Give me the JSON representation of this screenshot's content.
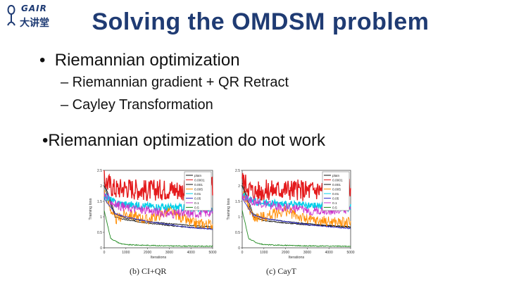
{
  "logo": {
    "en": "GAIR",
    "cn": "大讲堂"
  },
  "slide": {
    "title": "Solving the OMDSM problem",
    "bullet1": "Riemannian optimization",
    "sub_items": [
      "– Riemannian gradient + QR Retract",
      "– Cayley Transformation"
    ],
    "bullet2": "Riemannian optimization do not work"
  },
  "figures": [
    {
      "caption": "(b) CI+QR",
      "legend": [
        "plain",
        "0.0001",
        "0.001",
        "0.005",
        "0.01",
        "0.05",
        "0.1",
        "0.5"
      ]
    },
    {
      "caption": "(c) CayT",
      "legend": [
        "plain",
        "0.0001",
        "0.001",
        "0.005",
        "0.01",
        "0.05",
        "0.1",
        "0.5"
      ]
    }
  ],
  "chart_data": [
    {
      "type": "line",
      "ylabel": "Training loss",
      "xlabel": "Iterations",
      "xticks": [
        "0",
        "1000",
        "2000",
        "3000",
        "4000",
        "5000"
      ],
      "yticks": [
        "0",
        "0.5",
        "1",
        "1.5",
        "2",
        "2.5"
      ],
      "xlim": [
        0,
        5000
      ],
      "ylim": [
        0,
        2.5
      ],
      "series": [
        {
          "name": "plain",
          "color": "#111111",
          "points": [
            [
              0,
              2.1
            ],
            [
              500,
              1.1
            ],
            [
              1000,
              0.95
            ],
            [
              2000,
              0.85
            ],
            [
              3000,
              0.78
            ],
            [
              4000,
              0.72
            ],
            [
              5000,
              0.68
            ]
          ]
        },
        {
          "name": "0.0001",
          "color": "#e41a1c",
          "points": [
            [
              0,
              2.2
            ],
            [
              500,
              1.9
            ],
            [
              1000,
              1.95
            ],
            [
              2000,
              1.85
            ],
            [
              3000,
              1.9
            ],
            [
              4000,
              1.85
            ],
            [
              5000,
              1.95
            ]
          ]
        },
        {
          "name": "0.001",
          "color": "#111111",
          "points": [
            [
              0,
              2.0
            ],
            [
              500,
              1.0
            ],
            [
              1000,
              0.9
            ],
            [
              2000,
              0.8
            ],
            [
              3000,
              0.72
            ],
            [
              4000,
              0.66
            ],
            [
              5000,
              0.62
            ]
          ]
        },
        {
          "name": "0.005",
          "color": "#ff8c00",
          "points": [
            [
              0,
              1.8
            ],
            [
              500,
              0.9
            ],
            [
              1000,
              1.1
            ],
            [
              2000,
              0.9
            ],
            [
              3000,
              1.2
            ],
            [
              4000,
              0.8
            ],
            [
              5000,
              0.75
            ]
          ]
        },
        {
          "name": "0.01",
          "color": "#00cfe8",
          "points": [
            [
              0,
              1.7
            ],
            [
              500,
              1.45
            ],
            [
              1000,
              1.4
            ],
            [
              2000,
              1.35
            ],
            [
              3000,
              1.3
            ],
            [
              4000,
              1.3
            ],
            [
              5000,
              1.25
            ]
          ]
        },
        {
          "name": "0.05",
          "color": "#3333cc",
          "points": [
            [
              0,
              1.6
            ],
            [
              500,
              1.1
            ],
            [
              1000,
              1.0
            ],
            [
              2000,
              0.85
            ],
            [
              3000,
              0.75
            ],
            [
              4000,
              0.65
            ],
            [
              5000,
              0.6
            ]
          ]
        },
        {
          "name": "0.1",
          "color": "#cc33cc",
          "points": [
            [
              0,
              1.7
            ],
            [
              500,
              1.4
            ],
            [
              1000,
              1.3
            ],
            [
              2000,
              1.2
            ],
            [
              3000,
              1.1
            ],
            [
              4000,
              1.1
            ],
            [
              5000,
              1.15
            ]
          ]
        },
        {
          "name": "0.5",
          "color": "#228b22",
          "points": [
            [
              0,
              1.2
            ],
            [
              300,
              0.3
            ],
            [
              700,
              0.15
            ],
            [
              1000,
              0.1
            ],
            [
              2000,
              0.08
            ],
            [
              3000,
              0.06
            ],
            [
              5000,
              0.05
            ]
          ]
        }
      ]
    },
    {
      "type": "line",
      "ylabel": "Training loss",
      "xlabel": "Iterations",
      "xticks": [
        "0",
        "1000",
        "2000",
        "3000",
        "4000",
        "5000"
      ],
      "yticks": [
        "0",
        "0.5",
        "1",
        "1.5",
        "2",
        "2.5"
      ],
      "xlim": [
        0,
        5000
      ],
      "ylim": [
        0,
        2.5
      ],
      "series": [
        {
          "name": "plain",
          "color": "#111111",
          "points": [
            [
              0,
              2.1
            ],
            [
              500,
              1.1
            ],
            [
              1000,
              0.95
            ],
            [
              2000,
              0.85
            ],
            [
              3000,
              0.78
            ],
            [
              4000,
              0.72
            ],
            [
              5000,
              0.68
            ]
          ]
        },
        {
          "name": "0.0001",
          "color": "#e41a1c",
          "points": [
            [
              0,
              2.2
            ],
            [
              500,
              1.8
            ],
            [
              1000,
              1.85
            ],
            [
              2000,
              1.9
            ],
            [
              3000,
              1.85
            ],
            [
              4000,
              1.9
            ],
            [
              5000,
              1.95
            ]
          ]
        },
        {
          "name": "0.001",
          "color": "#111111",
          "points": [
            [
              0,
              2.0
            ],
            [
              500,
              1.0
            ],
            [
              1000,
              0.88
            ],
            [
              2000,
              0.8
            ],
            [
              3000,
              0.74
            ],
            [
              4000,
              0.7
            ],
            [
              5000,
              0.66
            ]
          ]
        },
        {
          "name": "0.005",
          "color": "#ff8c00",
          "points": [
            [
              0,
              1.8
            ],
            [
              500,
              1.0
            ],
            [
              1000,
              1.0
            ],
            [
              2000,
              1.2
            ],
            [
              3000,
              0.9
            ],
            [
              4000,
              0.85
            ],
            [
              5000,
              0.8
            ]
          ]
        },
        {
          "name": "0.01",
          "color": "#00cfe8",
          "points": [
            [
              0,
              1.7
            ],
            [
              500,
              1.5
            ],
            [
              1000,
              1.45
            ],
            [
              2000,
              1.4
            ],
            [
              3000,
              1.35
            ],
            [
              4000,
              1.35
            ],
            [
              5000,
              1.3
            ]
          ]
        },
        {
          "name": "0.05",
          "color": "#3333cc",
          "points": [
            [
              0,
              1.6
            ],
            [
              500,
              1.05
            ],
            [
              1000,
              0.95
            ],
            [
              2000,
              0.85
            ],
            [
              3000,
              0.75
            ],
            [
              4000,
              0.68
            ],
            [
              5000,
              0.62
            ]
          ]
        },
        {
          "name": "0.1",
          "color": "#cc33cc",
          "points": [
            [
              0,
              1.7
            ],
            [
              500,
              1.5
            ],
            [
              1000,
              1.4
            ],
            [
              2000,
              1.3
            ],
            [
              3000,
              1.2
            ],
            [
              4000,
              1.2
            ],
            [
              5000,
              1.25
            ]
          ]
        },
        {
          "name": "0.5",
          "color": "#228b22",
          "points": [
            [
              0,
              1.2
            ],
            [
              300,
              0.3
            ],
            [
              700,
              0.15
            ],
            [
              1000,
              0.1
            ],
            [
              2000,
              0.08
            ],
            [
              3000,
              0.06
            ],
            [
              5000,
              0.05
            ]
          ]
        }
      ]
    }
  ]
}
